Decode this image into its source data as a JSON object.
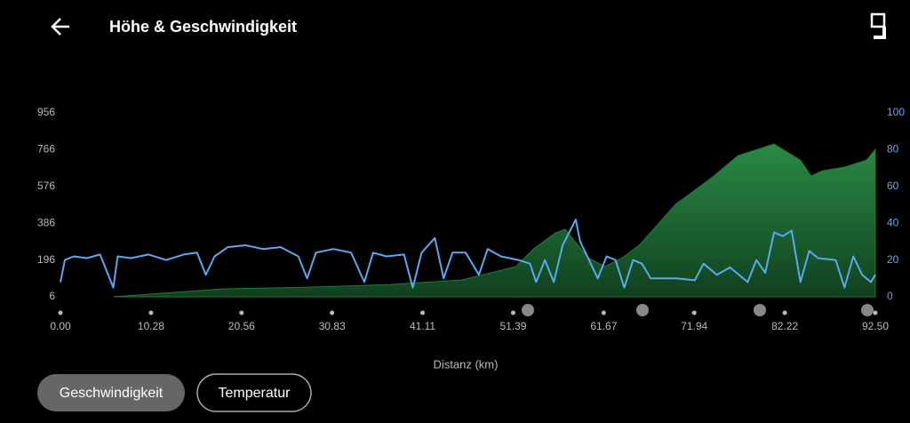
{
  "header": {
    "title": "Höhe & Geschwindigkeit"
  },
  "chart_data": {
    "type": "area",
    "xlabel": "Distanz (km)",
    "xlim": [
      0,
      92.5
    ],
    "xticks": [
      {
        "value": 0,
        "label": "0.00"
      },
      {
        "value": 10.28,
        "label": "10.28"
      },
      {
        "value": 20.56,
        "label": "20.56"
      },
      {
        "value": 30.83,
        "label": "30.83"
      },
      {
        "value": 41.11,
        "label": "41.11"
      },
      {
        "value": 51.39,
        "label": "51.39"
      },
      {
        "value": 61.67,
        "label": "61.67"
      },
      {
        "value": 71.94,
        "label": "71.94"
      },
      {
        "value": 82.22,
        "label": "82.22"
      },
      {
        "value": 92.5,
        "label": "92.50"
      }
    ],
    "ylim": [
      6,
      956
    ],
    "yticks": [
      6,
      196,
      386,
      576,
      766,
      956
    ],
    "y2lim": [
      0,
      100
    ],
    "y2ticks": [
      0,
      20,
      40,
      60,
      80,
      100
    ],
    "series": [
      {
        "name": "Höhe",
        "color": "#1f7a3a",
        "x": [
          6,
          18.4,
          28,
          37.5,
          45.6,
          51.7,
          53.7,
          56.2,
          57.3,
          59.9,
          61.8,
          63.8,
          65.8,
          69.8,
          73.9,
          76.9,
          81,
          84,
          85.2,
          86.5,
          89,
          91.5,
          92.5
        ],
        "values": [
          6,
          47,
          55,
          70,
          93,
          162,
          254,
          336,
          355,
          208,
          162,
          208,
          277,
          483,
          620,
          735,
          795,
          712,
          630,
          657,
          676,
          712,
          767
        ]
      },
      {
        "name": "Geschwindigkeit",
        "color": "#5aa9ee",
        "axis": "y2",
        "x": [
          0,
          0.5,
          1.5,
          3,
          4.5,
          6,
          6.5,
          8,
          10,
          12,
          14,
          15.5,
          16.5,
          17.5,
          19,
          21,
          23,
          25,
          27,
          28,
          29,
          31,
          33,
          34.5,
          35.5,
          37,
          39,
          40,
          41,
          42.5,
          43.5,
          44.5,
          46,
          47.5,
          48.5,
          50,
          52,
          53.3,
          54,
          55,
          56,
          57,
          58.5,
          59,
          60,
          61,
          62,
          63,
          64,
          65,
          66,
          67,
          68,
          70,
          72,
          73,
          74.5,
          76,
          78,
          79,
          80,
          81,
          82,
          83,
          84,
          85,
          86,
          88,
          89,
          90,
          91,
          92,
          92.5
        ],
        "values": [
          8,
          20,
          22,
          21,
          23,
          5,
          22,
          21,
          23,
          20,
          23,
          24,
          12,
          22,
          27,
          28,
          26,
          27,
          22,
          10,
          24,
          26,
          24,
          8,
          24,
          22,
          23,
          5,
          24,
          32,
          10,
          24,
          24,
          12,
          26,
          22,
          20,
          18,
          8,
          20,
          8,
          28,
          42,
          30,
          20,
          10,
          22,
          20,
          5,
          20,
          18,
          10,
          10,
          10,
          9,
          18,
          12,
          16,
          8,
          20,
          13,
          35,
          33,
          36,
          8,
          25,
          21,
          20,
          5,
          22,
          12,
          8,
          12
        ]
      }
    ]
  },
  "buttons": [
    "Geschwindigkeit",
    "Temperatur"
  ]
}
